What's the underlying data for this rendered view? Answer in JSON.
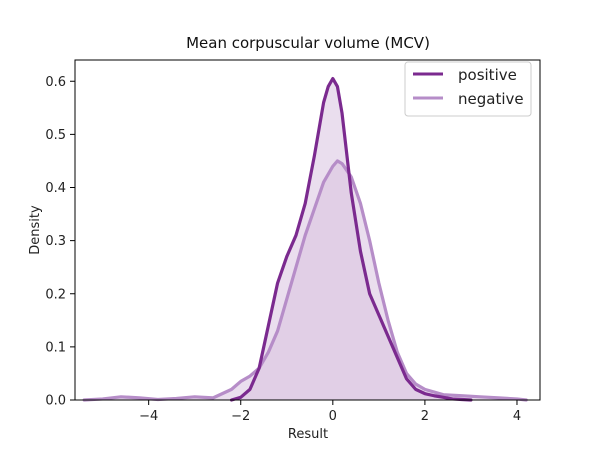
{
  "chart_data": {
    "type": "area",
    "title": "Mean corpuscular volume (MCV)",
    "xlabel": "Result",
    "ylabel": "Density",
    "xlim": [
      -5.6,
      4.5
    ],
    "ylim": [
      0,
      0.64
    ],
    "x_ticks": [
      -4,
      -2,
      0,
      2,
      4
    ],
    "x_tick_labels": [
      "−4",
      "−2",
      "0",
      "2",
      "4"
    ],
    "y_ticks": [
      0.0,
      0.1,
      0.2,
      0.3,
      0.4,
      0.5,
      0.6
    ],
    "y_tick_labels": [
      "0.0",
      "0.1",
      "0.2",
      "0.3",
      "0.4",
      "0.5",
      "0.6"
    ],
    "grid": false,
    "legend_position": "upper-right",
    "series": [
      {
        "name": "positive",
        "color": "#7b2a8f",
        "fill_color": "#d9c2e0",
        "x": [
          -2.2,
          -2.0,
          -1.8,
          -1.6,
          -1.4,
          -1.2,
          -1.0,
          -0.8,
          -0.6,
          -0.4,
          -0.2,
          -0.1,
          0.0,
          0.1,
          0.2,
          0.4,
          0.6,
          0.8,
          1.0,
          1.2,
          1.4,
          1.6,
          1.8,
          2.0,
          2.2,
          2.4,
          2.6,
          2.8,
          3.0
        ],
        "y": [
          0.0,
          0.005,
          0.02,
          0.06,
          0.14,
          0.22,
          0.27,
          0.31,
          0.37,
          0.46,
          0.56,
          0.59,
          0.605,
          0.59,
          0.54,
          0.39,
          0.28,
          0.2,
          0.16,
          0.12,
          0.08,
          0.04,
          0.02,
          0.012,
          0.008,
          0.005,
          0.002,
          0.001,
          0.0
        ]
      },
      {
        "name": "negative",
        "color": "#b68dc8",
        "fill_color": "#d9c2e0",
        "x": [
          -5.4,
          -5.0,
          -4.6,
          -4.2,
          -3.8,
          -3.4,
          -3.0,
          -2.6,
          -2.2,
          -2.0,
          -1.8,
          -1.6,
          -1.4,
          -1.2,
          -1.0,
          -0.8,
          -0.6,
          -0.4,
          -0.2,
          0.0,
          0.1,
          0.2,
          0.4,
          0.6,
          0.8,
          1.0,
          1.2,
          1.4,
          1.6,
          1.8,
          2.0,
          2.4,
          2.8,
          3.2,
          3.6,
          4.0,
          4.2
        ],
        "y": [
          0.0,
          0.002,
          0.006,
          0.004,
          0.001,
          0.003,
          0.006,
          0.004,
          0.02,
          0.035,
          0.045,
          0.06,
          0.09,
          0.13,
          0.19,
          0.25,
          0.31,
          0.36,
          0.41,
          0.44,
          0.45,
          0.445,
          0.42,
          0.37,
          0.3,
          0.22,
          0.15,
          0.09,
          0.05,
          0.03,
          0.02,
          0.01,
          0.008,
          0.006,
          0.004,
          0.002,
          0.0
        ]
      }
    ]
  }
}
